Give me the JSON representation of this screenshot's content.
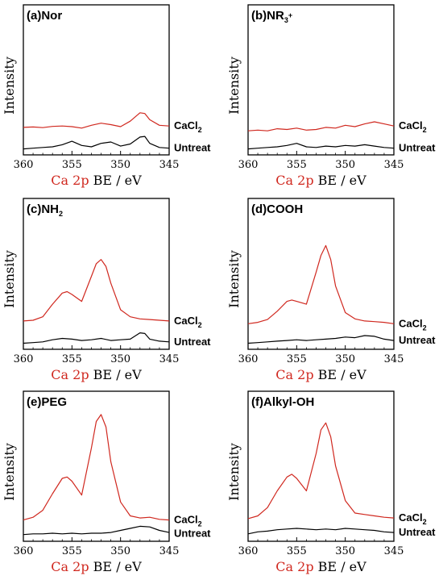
{
  "chart_data": [
    {
      "type": "line",
      "panel_label": "(a)Nor",
      "ylabel": "Intensity",
      "xlabel_colored": "Ca 2p",
      "xlabel_rest": "BE / eV",
      "xlim": [
        360,
        345
      ],
      "x_ticks": [
        "360",
        "355",
        "350",
        "345"
      ],
      "legend": [
        "CaCl2",
        "Untreat"
      ],
      "series": [
        {
          "name": "CaCl2",
          "color": "#d0281f",
          "x": [
            360,
            359,
            358,
            357,
            356,
            355,
            354,
            353,
            352,
            351,
            350,
            349,
            348,
            347.5,
            347,
            346,
            345
          ],
          "y": [
            1.75,
            1.78,
            1.73,
            1.82,
            1.85,
            1.8,
            1.7,
            1.9,
            2.05,
            1.95,
            1.8,
            2.2,
            2.8,
            2.75,
            2.3,
            1.9,
            1.85
          ]
        },
        {
          "name": "Untreat",
          "color": "#000000",
          "x": [
            360,
            359,
            358,
            357,
            356,
            355,
            354,
            353,
            352,
            351,
            350,
            349,
            348,
            347.5,
            347,
            346,
            345
          ],
          "y": [
            0.2,
            0.25,
            0.3,
            0.35,
            0.5,
            0.75,
            0.45,
            0.35,
            0.6,
            0.7,
            0.4,
            0.55,
            1.05,
            1.1,
            0.6,
            0.3,
            0.25
          ]
        }
      ]
    },
    {
      "type": "line",
      "panel_label": "(b)NR3+",
      "ylabel": "Intensity",
      "xlabel_colored": "Ca 2p",
      "xlabel_rest": "BE / eV",
      "xlim": [
        360,
        345
      ],
      "x_ticks": [
        "360",
        "355",
        "350",
        "345"
      ],
      "legend": [
        "CaCl2",
        "Untreat"
      ],
      "series": [
        {
          "name": "CaCl2",
          "color": "#d0281f",
          "x": [
            360,
            359,
            358,
            357,
            356,
            355,
            354,
            353,
            352,
            351,
            350,
            349,
            348,
            347,
            346,
            345
          ],
          "y": [
            1.5,
            1.55,
            1.5,
            1.65,
            1.6,
            1.7,
            1.55,
            1.6,
            1.75,
            1.7,
            1.9,
            1.8,
            2.0,
            2.15,
            2.0,
            1.85
          ]
        },
        {
          "name": "Untreat",
          "color": "#000000",
          "x": [
            360,
            359,
            358,
            357,
            356,
            355,
            354,
            353,
            352,
            351,
            350,
            349,
            348,
            347,
            346,
            345
          ],
          "y": [
            0.2,
            0.25,
            0.3,
            0.35,
            0.45,
            0.6,
            0.35,
            0.3,
            0.4,
            0.35,
            0.45,
            0.4,
            0.5,
            0.4,
            0.3,
            0.25
          ]
        }
      ]
    },
    {
      "type": "line",
      "panel_label": "(c)NH2",
      "ylabel": "Intensity",
      "xlabel_colored": "Ca 2p",
      "xlabel_rest": "BE / eV",
      "xlim": [
        360,
        345
      ],
      "x_ticks": [
        "360",
        "355",
        "350",
        "345"
      ],
      "legend": [
        "CaCl2",
        "Untreat"
      ],
      "series": [
        {
          "name": "CaCl2",
          "color": "#d0281f",
          "x": [
            360,
            359,
            358,
            357,
            356,
            355.5,
            355,
            354,
            353,
            352.5,
            352,
            351.5,
            351,
            350,
            349,
            348,
            347,
            346,
            345
          ],
          "y": [
            1.8,
            1.85,
            2.1,
            3.0,
            3.8,
            3.9,
            3.7,
            3.2,
            5.0,
            5.9,
            6.2,
            5.7,
            4.5,
            2.6,
            2.1,
            1.95,
            1.9,
            1.85,
            1.8
          ]
        },
        {
          "name": "Untreat",
          "color": "#000000",
          "x": [
            360,
            359,
            358,
            357,
            356,
            355,
            354,
            353,
            352,
            351,
            350,
            349,
            348,
            347.5,
            347,
            346,
            345
          ],
          "y": [
            0.2,
            0.25,
            0.3,
            0.45,
            0.55,
            0.5,
            0.4,
            0.45,
            0.55,
            0.4,
            0.45,
            0.5,
            0.95,
            0.9,
            0.5,
            0.35,
            0.3
          ]
        }
      ]
    },
    {
      "type": "line",
      "panel_label": "(d)COOH",
      "ylabel": "Intensity",
      "xlabel_colored": "Ca 2p",
      "xlabel_rest": "BE / eV",
      "xlim": [
        360,
        345
      ],
      "x_ticks": [
        "360",
        "355",
        "350",
        "345"
      ],
      "legend": [
        "CaCl2",
        "Untreat"
      ],
      "series": [
        {
          "name": "CaCl2",
          "color": "#d0281f",
          "x": [
            360,
            359,
            358,
            357,
            356,
            355.5,
            355,
            354,
            353,
            352.5,
            352,
            351.5,
            351,
            350,
            349,
            348,
            347,
            346,
            345
          ],
          "y": [
            1.6,
            1.7,
            1.9,
            2.5,
            3.2,
            3.3,
            3.2,
            3.0,
            5.3,
            6.5,
            7.2,
            6.2,
            4.3,
            2.4,
            1.95,
            1.8,
            1.75,
            1.7,
            1.6
          ]
        },
        {
          "name": "Untreat",
          "color": "#000000",
          "x": [
            360,
            359,
            358,
            357,
            356,
            355,
            354,
            353,
            352,
            351,
            350,
            349,
            348,
            347,
            346,
            345
          ],
          "y": [
            0.2,
            0.25,
            0.3,
            0.35,
            0.4,
            0.45,
            0.4,
            0.45,
            0.5,
            0.55,
            0.65,
            0.6,
            0.75,
            0.7,
            0.5,
            0.4
          ]
        }
      ]
    },
    {
      "type": "line",
      "panel_label": "(e)PEG",
      "ylabel": "Intensity",
      "xlabel_colored": "Ca 2p",
      "xlabel_rest": "BE / eV",
      "xlim": [
        360,
        345
      ],
      "x_ticks": [
        "360",
        "355",
        "350",
        "345"
      ],
      "legend": [
        "CaCl2",
        "Untreat"
      ],
      "series": [
        {
          "name": "CaCl2",
          "color": "#d0281f",
          "x": [
            360,
            359,
            358,
            357,
            356,
            355.5,
            355,
            354,
            353,
            352.5,
            352,
            351.5,
            351,
            350,
            349,
            348,
            347,
            346,
            345
          ],
          "y": [
            1.3,
            1.5,
            2.0,
            3.2,
            4.3,
            4.4,
            4.1,
            3.1,
            6.5,
            8.4,
            8.9,
            8.0,
            5.5,
            2.6,
            1.6,
            1.45,
            1.5,
            1.35,
            1.3
          ]
        },
        {
          "name": "Untreat",
          "color": "#000000",
          "x": [
            360,
            359,
            358,
            357,
            356,
            355,
            354,
            353,
            352,
            351,
            350,
            349,
            348,
            347,
            346,
            345
          ],
          "y": [
            0.25,
            0.3,
            0.3,
            0.35,
            0.3,
            0.35,
            0.3,
            0.35,
            0.35,
            0.4,
            0.55,
            0.7,
            0.85,
            0.8,
            0.55,
            0.4
          ]
        }
      ]
    },
    {
      "type": "line",
      "panel_label": "(f)Alkyl-OH",
      "ylabel": "Intensity",
      "xlabel_colored": "Ca 2p",
      "xlabel_rest": "BE / eV",
      "xlim": [
        360,
        345
      ],
      "x_ticks": [
        "360",
        "355",
        "350",
        "345"
      ],
      "legend": [
        "CaCl2",
        "Untreat"
      ],
      "series": [
        {
          "name": "CaCl2",
          "color": "#d0281f",
          "x": [
            360,
            359,
            358,
            357,
            356,
            355.5,
            355,
            354,
            353,
            352.5,
            352,
            351.5,
            351,
            350,
            349,
            348,
            347,
            346,
            345
          ],
          "y": [
            1.4,
            1.6,
            2.2,
            3.4,
            4.4,
            4.6,
            4.3,
            3.4,
            6.1,
            7.8,
            8.3,
            7.3,
            5.2,
            2.7,
            1.8,
            1.7,
            1.6,
            1.5,
            1.45
          ]
        },
        {
          "name": "Untreat",
          "color": "#000000",
          "x": [
            360,
            359,
            358,
            357,
            356,
            355,
            354,
            353,
            352,
            351,
            350,
            349,
            348,
            347,
            346,
            345
          ],
          "y": [
            0.3,
            0.45,
            0.5,
            0.6,
            0.65,
            0.7,
            0.65,
            0.6,
            0.65,
            0.6,
            0.7,
            0.65,
            0.6,
            0.55,
            0.45,
            0.4
          ]
        }
      ]
    }
  ]
}
